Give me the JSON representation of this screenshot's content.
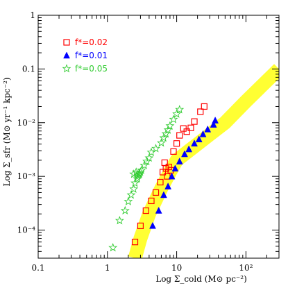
{
  "chart_data": {
    "type": "scatter",
    "title": "",
    "xlabel": "Log Σ_cold (M⊙ pc⁻²)",
    "ylabel": "Log Σ_sfr (M⊙ yr⁻¹ kpc⁻²)",
    "xlim": [
      0.1,
      300
    ],
    "ylim": [
      3e-05,
      1
    ],
    "x_scale": "log",
    "y_scale": "log",
    "grid": false,
    "legend_position": "top-left",
    "x_tick_labels": [
      "0.1",
      "1",
      "10",
      "10²"
    ],
    "y_tick_labels": [
      "10⁻⁴",
      "10⁻³",
      "10⁻²",
      "0.1",
      "1"
    ],
    "band": {
      "color": "#ffff33",
      "x": [
        2.5,
        3,
        4,
        6,
        8,
        10,
        15,
        20,
        30,
        50,
        100,
        200,
        300
      ],
      "y": [
        3e-05,
        7e-05,
        0.0002,
        0.0006,
        0.0012,
        0.002,
        0.003,
        0.004,
        0.006,
        0.01,
        0.025,
        0.06,
        0.1
      ]
    },
    "series": [
      {
        "name": "f*=0.02",
        "marker": "open-square",
        "color": "#ff0000",
        "x": [
          2.5,
          3.0,
          3.6,
          4.3,
          5.0,
          5.8,
          6.3,
          6.7,
          7.0,
          7.3,
          7.7,
          8.2,
          9.0,
          10.0,
          11.0,
          12.5,
          14.0,
          16.0,
          18.0,
          22.0,
          25.0
        ],
        "y": [
          6e-05,
          0.00012,
          0.00023,
          0.00035,
          0.0005,
          0.00078,
          0.0012,
          0.0018,
          0.0014,
          0.001,
          0.0015,
          0.0013,
          0.0029,
          0.0041,
          0.0058,
          0.0078,
          0.0068,
          0.008,
          0.0105,
          0.016,
          0.02
        ]
      },
      {
        "name": "f*=0.01",
        "marker": "filled-triangle",
        "color": "#0000ff",
        "x": [
          4.5,
          5.5,
          6.5,
          7.5,
          8.5,
          9.5,
          11.0,
          13.0,
          15.0,
          18.0,
          21.0,
          24.0,
          28.0,
          34.0,
          36.0
        ],
        "y": [
          0.00012,
          0.00023,
          0.00045,
          0.00065,
          0.001,
          0.0014,
          0.0019,
          0.0026,
          0.0032,
          0.0041,
          0.0049,
          0.0061,
          0.0075,
          0.0092,
          0.011
        ]
      },
      {
        "name": "f*=0.05",
        "marker": "open-star",
        "color": "#33cc33",
        "x": [
          1.2,
          1.5,
          1.8,
          2.0,
          2.2,
          2.4,
          2.5,
          2.7,
          2.8,
          2.9,
          3.0,
          2.6,
          2.4,
          2.7,
          2.9,
          3.1,
          3.4,
          3.7,
          4.0,
          4.3,
          5.0,
          6.0,
          6.5,
          7.0,
          7.5,
          8.0,
          9.0,
          10.0,
          11.0
        ],
        "y": [
          4.7e-05,
          0.00015,
          0.00023,
          0.00034,
          0.00045,
          0.00058,
          0.00075,
          0.0009,
          0.00105,
          0.00115,
          0.0012,
          0.0012,
          0.0011,
          0.00098,
          0.0011,
          0.0013,
          0.0016,
          0.0019,
          0.0022,
          0.0028,
          0.0033,
          0.0042,
          0.0052,
          0.0062,
          0.0073,
          0.0087,
          0.0115,
          0.0145,
          0.0175
        ]
      }
    ]
  }
}
